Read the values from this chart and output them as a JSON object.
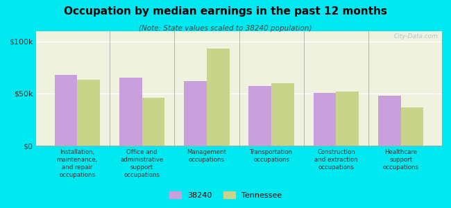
{
  "title": "Occupation by median earnings in the past 12 months",
  "subtitle": "(Note: State values scaled to 38240 population)",
  "categories": [
    "Installation,\nmaintenance,\nand repair\noccupations",
    "Office and\nadministrative\nsupport\noccupations",
    "Management\noccupations",
    "Transportation\noccupations",
    "Construction\nand extraction\noccupations",
    "Healthcare\nsupport\noccupations"
  ],
  "values_38240": [
    68000,
    65000,
    62000,
    57000,
    51000,
    48000
  ],
  "values_tennessee": [
    63000,
    46000,
    93000,
    60000,
    52000,
    37000
  ],
  "color_38240": "#c9a0dc",
  "color_tennessee": "#c8d48a",
  "background_outer": "#00e8f0",
  "background_plot": "#eef2df",
  "ylim": [
    0,
    110000
  ],
  "ytick_labels": [
    "$0",
    "$50k",
    "$100k"
  ],
  "legend_label_38240": "38240",
  "legend_label_tennessee": "Tennessee",
  "watermark": "City-Data.com"
}
